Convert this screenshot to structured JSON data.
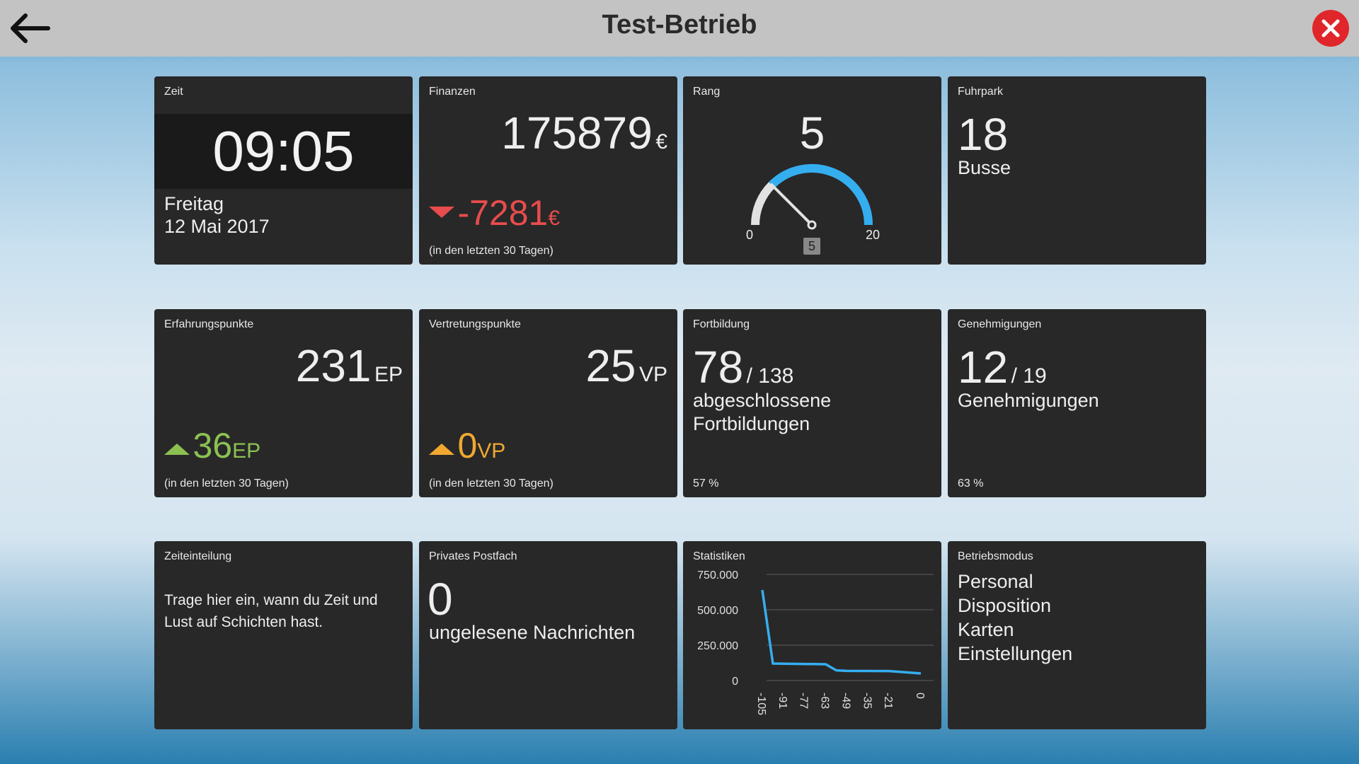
{
  "header": {
    "title": "Test-Betrieb",
    "back_icon": "arrow-left-icon",
    "close_icon": "close-icon"
  },
  "colors": {
    "accent": "#35aef0",
    "negative": "#e84c4c",
    "positive": "#8cc152",
    "neutral": "#f0a830",
    "close": "#e0262a"
  },
  "zeit": {
    "title": "Zeit",
    "time": "09:05",
    "weekday": "Freitag",
    "date": "12 Mai 2017"
  },
  "finanzen": {
    "title": "Finanzen",
    "value": "175879",
    "unit": "€",
    "change": "-7281",
    "change_unit": "€",
    "footnote": "(in den letzten 30 Tagen)"
  },
  "rang": {
    "title": "Rang",
    "value": "5",
    "gauge_min": "0",
    "gauge_max": "20",
    "gauge_value": 5,
    "badge": "5"
  },
  "fuhrpark": {
    "title": "Fuhrpark",
    "value": "18",
    "label": "Busse"
  },
  "erfahrung": {
    "title": "Erfahrungspunkte",
    "value": "231",
    "unit": "EP",
    "change": "36",
    "change_unit": "EP",
    "footnote": "(in den letzten 30 Tagen)"
  },
  "vertretung": {
    "title": "Vertretungspunkte",
    "value": "25",
    "unit": "VP",
    "change": "0",
    "change_unit": "VP",
    "footnote": "(in den letzten 30 Tagen)"
  },
  "fortbildung": {
    "title": "Fortbildung",
    "value": "78",
    "total": "/ 138",
    "line1": "abgeschlossene",
    "line2": "Fortbildungen",
    "percent": "57 %"
  },
  "genehmigungen": {
    "title": "Genehmigungen",
    "value": "12",
    "total": "/ 19",
    "line1": "Genehmigungen",
    "percent": "63 %"
  },
  "zeiteinteilung": {
    "title": "Zeiteinteilung",
    "line1": "Trage hier ein, wann du Zeit und",
    "line2": "Lust auf Schichten hast."
  },
  "postfach": {
    "title": "Privates Postfach",
    "value": "0",
    "label": "ungelesene Nachrichten"
  },
  "statistiken": {
    "title": "Statistiken"
  },
  "betriebsmodus": {
    "title": "Betriebsmodus",
    "items": [
      "Personal",
      "Disposition",
      "Karten",
      "Einstellungen"
    ]
  },
  "chart_data": {
    "type": "line",
    "title": "Statistiken",
    "ylim": [
      0,
      750000
    ],
    "yticks": [
      "0",
      "250.000",
      "500.000",
      "750.000"
    ],
    "ytick_values": [
      0,
      250000,
      500000,
      750000
    ],
    "xlim": [
      -105,
      0
    ],
    "xticks": [
      "-105",
      "-91",
      "-77",
      "-63",
      "-49",
      "-35",
      "-21",
      "0"
    ],
    "xtick_values": [
      -105,
      -91,
      -77,
      -63,
      -49,
      -35,
      -21,
      0
    ],
    "grid": true,
    "series": [
      {
        "color": "#35aef0",
        "x": [
          -105,
          -98,
          -63,
          -56,
          -49,
          -21,
          0
        ],
        "y": [
          640000,
          120000,
          115000,
          72000,
          68000,
          67000,
          50000
        ]
      }
    ]
  }
}
